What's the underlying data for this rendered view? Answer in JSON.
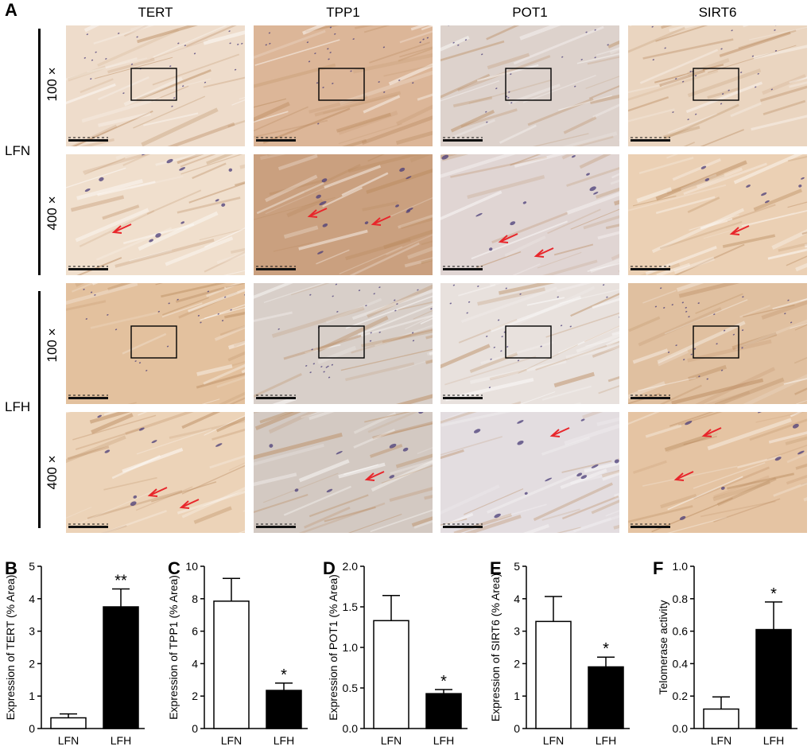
{
  "figure": {
    "panel_a_letter": "A",
    "columns": [
      "TERT",
      "TPP1",
      "POT1",
      "SIRT6"
    ],
    "groups": [
      "LFN",
      "LFH"
    ],
    "magnifications": [
      "100 ×",
      "400 ×"
    ],
    "tile_tones": {
      "TERT": {
        "LFN_100": "#eedccb",
        "LFN_400": "#f0dfcd",
        "LFH_100": "#e3c19e",
        "LFH_400": "#ecd3b8"
      },
      "TPP1": {
        "LFN_100": "#dcb698",
        "LFN_400": "#caa07f",
        "LFH_100": "#d8cfc9",
        "LFH_400": "#d3c9c2"
      },
      "POT1": {
        "LFN_100": "#ddd2cc",
        "LFN_400": "#e0d5d3",
        "LFH_100": "#e8e1dd",
        "LFH_400": "#e3dde0"
      },
      "SIRT6": {
        "LFN_100": "#ead5c0",
        "LFN_400": "#ebd0b4",
        "LFH_100": "#e0c0a0",
        "LFH_400": "#e5c4a3"
      }
    },
    "arrow_color": "#e8262b",
    "nuclei_color": "#4a3c78"
  },
  "chart_data": [
    {
      "panel": "B",
      "type": "bar",
      "categories": [
        "LFN",
        "LFH"
      ],
      "values": [
        0.33,
        3.75
      ],
      "errors": [
        0.12,
        0.55
      ],
      "fills": [
        "#ffffff",
        "#000000"
      ],
      "significance": [
        "",
        "**"
      ],
      "ylabel": "Expression of TERT (% Area)",
      "ylim": [
        0,
        5
      ],
      "yticks": [
        "0",
        "1",
        "2",
        "3",
        "4",
        "5"
      ]
    },
    {
      "panel": "C",
      "type": "bar",
      "categories": [
        "LFN",
        "LFH"
      ],
      "values": [
        7.85,
        2.35
      ],
      "errors": [
        1.4,
        0.45
      ],
      "fills": [
        "#ffffff",
        "#000000"
      ],
      "significance": [
        "",
        "*"
      ],
      "ylabel": "Expression of TPP1 (% Area)",
      "ylim": [
        0,
        10
      ],
      "yticks": [
        "0",
        "2",
        "4",
        "6",
        "8",
        "10"
      ]
    },
    {
      "panel": "D",
      "type": "bar",
      "categories": [
        "LFN",
        "LFH"
      ],
      "values": [
        1.33,
        0.43
      ],
      "errors": [
        0.31,
        0.05
      ],
      "fills": [
        "#ffffff",
        "#000000"
      ],
      "significance": [
        "",
        "*"
      ],
      "ylabel": "Expression of POT1 (% Area)",
      "ylim": [
        0,
        2.0
      ],
      "yticks": [
        "0.0",
        "0.5",
        "1.0",
        "1.5",
        "2.0"
      ]
    },
    {
      "panel": "E",
      "type": "bar",
      "categories": [
        "LFN",
        "LFH"
      ],
      "values": [
        3.3,
        1.9
      ],
      "errors": [
        0.77,
        0.3
      ],
      "fills": [
        "#ffffff",
        "#000000"
      ],
      "significance": [
        "",
        "*"
      ],
      "ylabel": "Expression of SIRT6 (% Area)",
      "ylim": [
        0,
        5
      ],
      "yticks": [
        "0",
        "1",
        "2",
        "3",
        "4",
        "5"
      ]
    },
    {
      "panel": "F",
      "type": "bar",
      "categories": [
        "LFN",
        "LFH"
      ],
      "values": [
        0.12,
        0.61
      ],
      "errors": [
        0.075,
        0.17
      ],
      "fills": [
        "#ffffff",
        "#000000"
      ],
      "significance": [
        "",
        "*"
      ],
      "ylabel": "Telomerase activity",
      "ylim": [
        0,
        1.0
      ],
      "yticks": [
        "0.0",
        "0.2",
        "0.4",
        "0.6",
        "0.8",
        "1.0"
      ]
    }
  ]
}
